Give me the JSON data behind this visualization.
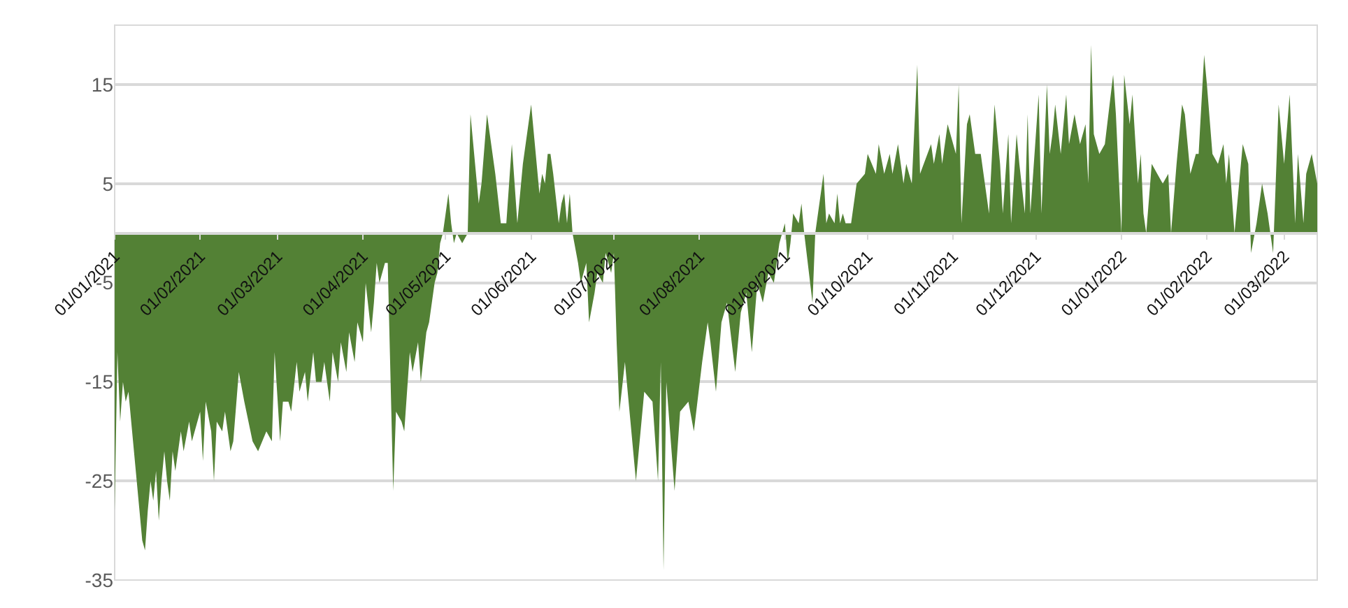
{
  "chart_data": {
    "type": "area",
    "color": "#538135",
    "x": [
      "2021-01-01",
      "2021-01-02",
      "2021-01-03",
      "2021-01-04",
      "2021-01-05",
      "2021-01-06",
      "2021-01-07",
      "2021-01-09",
      "2021-01-11",
      "2021-01-12",
      "2021-01-13",
      "2021-01-14",
      "2021-01-15",
      "2021-01-16",
      "2021-01-17",
      "2021-01-18",
      "2021-01-19",
      "2021-01-20",
      "2021-01-21",
      "2021-01-22",
      "2021-01-23",
      "2021-01-25",
      "2021-01-26",
      "2021-01-28",
      "2021-01-29",
      "2021-02-01",
      "2021-02-02",
      "2021-02-03",
      "2021-02-05",
      "2021-02-06",
      "2021-02-07",
      "2021-02-09",
      "2021-02-10",
      "2021-02-12",
      "2021-02-13",
      "2021-02-15",
      "2021-02-17",
      "2021-02-20",
      "2021-02-22",
      "2021-02-25",
      "2021-02-27",
      "2021-02-28",
      "2021-03-02",
      "2021-03-03",
      "2021-03-05",
      "2021-03-06",
      "2021-03-08",
      "2021-03-09",
      "2021-03-11",
      "2021-03-12",
      "2021-03-14",
      "2021-03-15",
      "2021-03-17",
      "2021-03-18",
      "2021-03-20",
      "2021-03-21",
      "2021-03-23",
      "2021-03-24",
      "2021-03-26",
      "2021-03-27",
      "2021-03-29",
      "2021-03-30",
      "2021-04-01",
      "2021-04-02",
      "2021-04-04",
      "2021-04-05",
      "2021-04-06",
      "2021-04-07",
      "2021-04-09",
      "2021-04-10",
      "2021-04-12",
      "2021-04-13",
      "2021-04-15",
      "2021-04-16",
      "2021-04-18",
      "2021-04-19",
      "2021-04-21",
      "2021-04-22",
      "2021-04-24",
      "2021-04-25",
      "2021-04-27",
      "2021-04-28",
      "2021-04-29",
      "2021-04-30",
      "2021-05-01",
      "2021-05-02",
      "2021-05-03",
      "2021-05-04",
      "2021-05-05",
      "2021-05-07",
      "2021-05-09",
      "2021-05-10",
      "2021-05-13",
      "2021-05-14",
      "2021-05-16",
      "2021-05-19",
      "2021-05-21",
      "2021-05-23",
      "2021-05-25",
      "2021-05-27",
      "2021-05-29",
      "2021-06-01",
      "2021-06-03",
      "2021-06-04",
      "2021-06-05",
      "2021-06-06",
      "2021-06-07",
      "2021-06-08",
      "2021-06-09",
      "2021-06-11",
      "2021-06-12",
      "2021-06-13",
      "2021-06-14",
      "2021-06-15",
      "2021-06-16",
      "2021-06-18",
      "2021-06-19",
      "2021-06-21",
      "2021-06-22",
      "2021-06-24",
      "2021-06-25",
      "2021-06-27",
      "2021-06-28",
      "2021-06-30",
      "2021-07-01",
      "2021-07-02",
      "2021-07-03",
      "2021-07-05",
      "2021-07-06",
      "2021-07-09",
      "2021-07-12",
      "2021-07-15",
      "2021-07-17",
      "2021-07-18",
      "2021-07-19",
      "2021-07-20",
      "2021-07-23",
      "2021-07-25",
      "2021-07-28",
      "2021-07-30",
      "2021-08-02",
      "2021-08-04",
      "2021-08-05",
      "2021-08-07",
      "2021-08-09",
      "2021-08-11",
      "2021-08-14",
      "2021-08-16",
      "2021-08-18",
      "2021-08-20",
      "2021-08-22",
      "2021-08-24",
      "2021-08-26",
      "2021-08-28",
      "2021-08-30",
      "2021-09-01",
      "2021-09-02",
      "2021-09-03",
      "2021-09-04",
      "2021-09-06",
      "2021-09-07",
      "2021-09-08",
      "2021-09-11",
      "2021-09-12",
      "2021-09-15",
      "2021-09-16",
      "2021-09-17",
      "2021-09-19",
      "2021-09-20",
      "2021-09-21",
      "2021-09-22",
      "2021-09-23",
      "2021-09-25",
      "2021-09-27",
      "2021-09-30",
      "2021-10-01",
      "2021-10-04",
      "2021-10-05",
      "2021-10-07",
      "2021-10-09",
      "2021-10-10",
      "2021-10-12",
      "2021-10-14",
      "2021-10-15",
      "2021-10-17",
      "2021-10-19",
      "2021-10-20",
      "2021-10-24",
      "2021-10-25",
      "2021-10-27",
      "2021-10-28",
      "2021-10-30",
      "2021-11-02",
      "2021-11-03",
      "2021-11-04",
      "2021-11-06",
      "2021-11-07",
      "2021-11-09",
      "2021-11-11",
      "2021-11-14",
      "2021-11-16",
      "2021-11-18",
      "2021-11-19",
      "2021-11-21",
      "2021-11-22",
      "2021-11-24",
      "2021-11-25",
      "2021-11-27",
      "2021-11-28",
      "2021-11-29",
      "2021-12-02",
      "2021-12-03",
      "2021-12-05",
      "2021-12-06",
      "2021-12-07",
      "2021-12-08",
      "2021-12-10",
      "2021-12-12",
      "2021-12-13",
      "2021-12-15",
      "2021-12-17",
      "2021-12-19",
      "2021-12-20",
      "2021-12-21",
      "2021-12-22",
      "2021-12-24",
      "2021-12-26",
      "2021-12-29",
      "2021-12-30",
      "2022-01-01",
      "2022-01-02",
      "2022-01-04",
      "2022-01-05",
      "2022-01-07",
      "2022-01-08",
      "2022-01-09",
      "2022-01-10",
      "2022-01-12",
      "2022-01-14",
      "2022-01-16",
      "2022-01-18",
      "2022-01-19",
      "2022-01-21",
      "2022-01-23",
      "2022-01-24",
      "2022-01-26",
      "2022-01-28",
      "2022-01-29",
      "2022-01-31",
      "2022-02-01",
      "2022-02-03",
      "2022-02-05",
      "2022-02-07",
      "2022-02-08",
      "2022-02-09",
      "2022-02-11",
      "2022-02-14",
      "2022-02-16",
      "2022-02-17",
      "2022-02-19",
      "2022-02-21",
      "2022-02-23",
      "2022-02-25",
      "2022-02-27",
      "2022-03-01",
      "2022-03-03",
      "2022-03-05",
      "2022-03-06",
      "2022-03-08",
      "2022-03-09",
      "2022-03-11",
      "2022-03-13"
    ],
    "values": [
      -28,
      -12,
      -19,
      -15,
      -17,
      -16,
      -19,
      -25,
      -31,
      -32,
      -28,
      -25,
      -27,
      -24,
      -29,
      -25,
      -22,
      -25,
      -27,
      -22,
      -24,
      -20,
      -22,
      -19,
      -21,
      -18,
      -23,
      -17,
      -20,
      -25,
      -19,
      -20,
      -18,
      -22,
      -21,
      -14,
      -17,
      -21,
      -22,
      -20,
      -21,
      -12,
      -21,
      -17,
      -17,
      -18,
      -13,
      -16,
      -14,
      -17,
      -12,
      -15,
      -15,
      -13,
      -17,
      -12,
      -15,
      -11,
      -14,
      -10,
      -13,
      -9,
      -11,
      -5,
      -10,
      -7,
      -3,
      -5,
      -3,
      -3,
      -26,
      -18,
      -19,
      -20,
      -12,
      -14,
      -11,
      -15,
      -10,
      -9,
      -5,
      -4,
      -1,
      0,
      2,
      4,
      1,
      -1,
      0,
      -1,
      0,
      12,
      3,
      5,
      12,
      6,
      1,
      1,
      9,
      1,
      7,
      13,
      7,
      4,
      6,
      5,
      8,
      8,
      6,
      1,
      3,
      4,
      1,
      4,
      0,
      -3,
      -5,
      -3,
      -9,
      -6,
      -4,
      -5,
      -2,
      -4,
      -2,
      -11,
      -18,
      -13,
      -16,
      -25,
      -16,
      -17,
      -25,
      -13,
      -34,
      -15,
      -26,
      -18,
      -17,
      -20,
      -13,
      -9,
      -11,
      -16,
      -9,
      -7,
      -14,
      -8,
      -6,
      -12,
      -5,
      -7,
      -4,
      -5,
      -1,
      1,
      -3,
      -1,
      2,
      1,
      3,
      0,
      -7,
      0,
      6,
      1,
      2,
      1,
      4,
      1,
      2,
      1,
      1,
      5,
      6,
      8,
      6,
      9,
      6,
      8,
      6,
      9,
      5,
      7,
      5,
      17,
      6,
      9,
      7,
      10,
      7,
      11,
      8,
      15,
      1,
      11,
      12,
      8,
      8,
      2,
      13,
      7,
      2,
      10,
      1,
      10,
      7,
      2,
      12,
      2,
      14,
      2,
      15,
      8,
      10,
      13,
      8,
      14,
      9,
      12,
      9,
      11,
      5,
      19,
      10,
      8,
      9,
      16,
      12,
      0,
      16,
      11,
      14,
      5,
      8,
      2,
      0,
      7,
      6,
      5,
      6,
      0,
      7,
      13,
      12,
      6,
      8,
      8,
      18,
      15,
      8,
      7,
      9,
      5,
      8,
      0,
      9,
      7,
      -2,
      1,
      5,
      2,
      -2,
      13,
      7,
      14,
      1,
      8,
      1,
      6,
      8,
      5
    ],
    "xlim": [
      "2021-01-01",
      "2022-03-13"
    ],
    "xticks": [
      {
        "value": "2021-01-01",
        "label": "01/01/2021"
      },
      {
        "value": "2021-02-01",
        "label": "01/02/2021"
      },
      {
        "value": "2021-03-01",
        "label": "01/03/2021"
      },
      {
        "value": "2021-04-01",
        "label": "01/04/2021"
      },
      {
        "value": "2021-05-01",
        "label": "01/05/2021"
      },
      {
        "value": "2021-06-01",
        "label": "01/06/2021"
      },
      {
        "value": "2021-07-01",
        "label": "01/07/2021"
      },
      {
        "value": "2021-08-01",
        "label": "01/08/2021"
      },
      {
        "value": "2021-09-01",
        "label": "01/09/2021"
      },
      {
        "value": "2021-10-01",
        "label": "01/10/2021"
      },
      {
        "value": "2021-11-01",
        "label": "01/11/2021"
      },
      {
        "value": "2021-12-01",
        "label": "01/12/2021"
      },
      {
        "value": "2022-01-01",
        "label": "01/01/2022"
      },
      {
        "value": "2022-02-01",
        "label": "01/02/2022"
      },
      {
        "value": "2022-03-01",
        "label": "01/03/2022"
      }
    ],
    "ylim": [
      -35,
      21
    ],
    "yticks": [
      -35,
      -25,
      -15,
      -5,
      5,
      15
    ],
    "grid": "y"
  }
}
